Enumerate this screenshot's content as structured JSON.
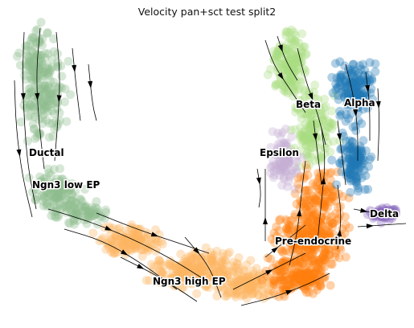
{
  "chart_data": {
    "type": "scatter",
    "title": "Velocity pan+sct test split2",
    "xlabel": "",
    "ylabel": "",
    "grid": false,
    "axes_visible": false,
    "overlay": "velocity streamlines",
    "clusters": [
      {
        "name": "Ductal",
        "color": "#8fbc8f"
      },
      {
        "name": "Ngn3 low EP",
        "color": "#8fbc8f"
      },
      {
        "name": "Ngn3 high EP",
        "color": "#fdb462"
      },
      {
        "name": "Pre-endocrine",
        "color": "#ff7f0e"
      },
      {
        "name": "Beta",
        "color": "#aadc82"
      },
      {
        "name": "Alpha",
        "color": "#1f77b4"
      },
      {
        "name": "Epsilon",
        "color": "#c5b0d5"
      },
      {
        "name": "Delta",
        "color": "#8a6bbe"
      }
    ]
  }
}
